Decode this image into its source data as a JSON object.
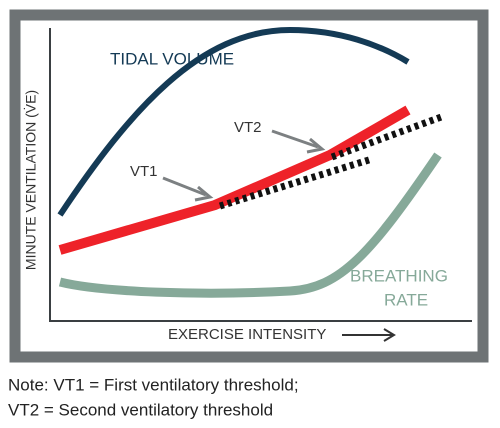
{
  "diagram": {
    "y_axis_label": "MINUTE VENTILATION (V̇E)",
    "x_axis_label": "EXERCISE INTENSITY",
    "curves": {
      "tidal_volume": "TIDAL VOLUME",
      "breathing_rate": [
        "BREATHING",
        "RATE"
      ]
    },
    "markers": {
      "vt1": "VT1",
      "vt2": "VT2"
    }
  },
  "note": [
    "Note: VT1 = First ventilatory threshold;",
    "VT2 = Second ventilatory threshold"
  ]
}
